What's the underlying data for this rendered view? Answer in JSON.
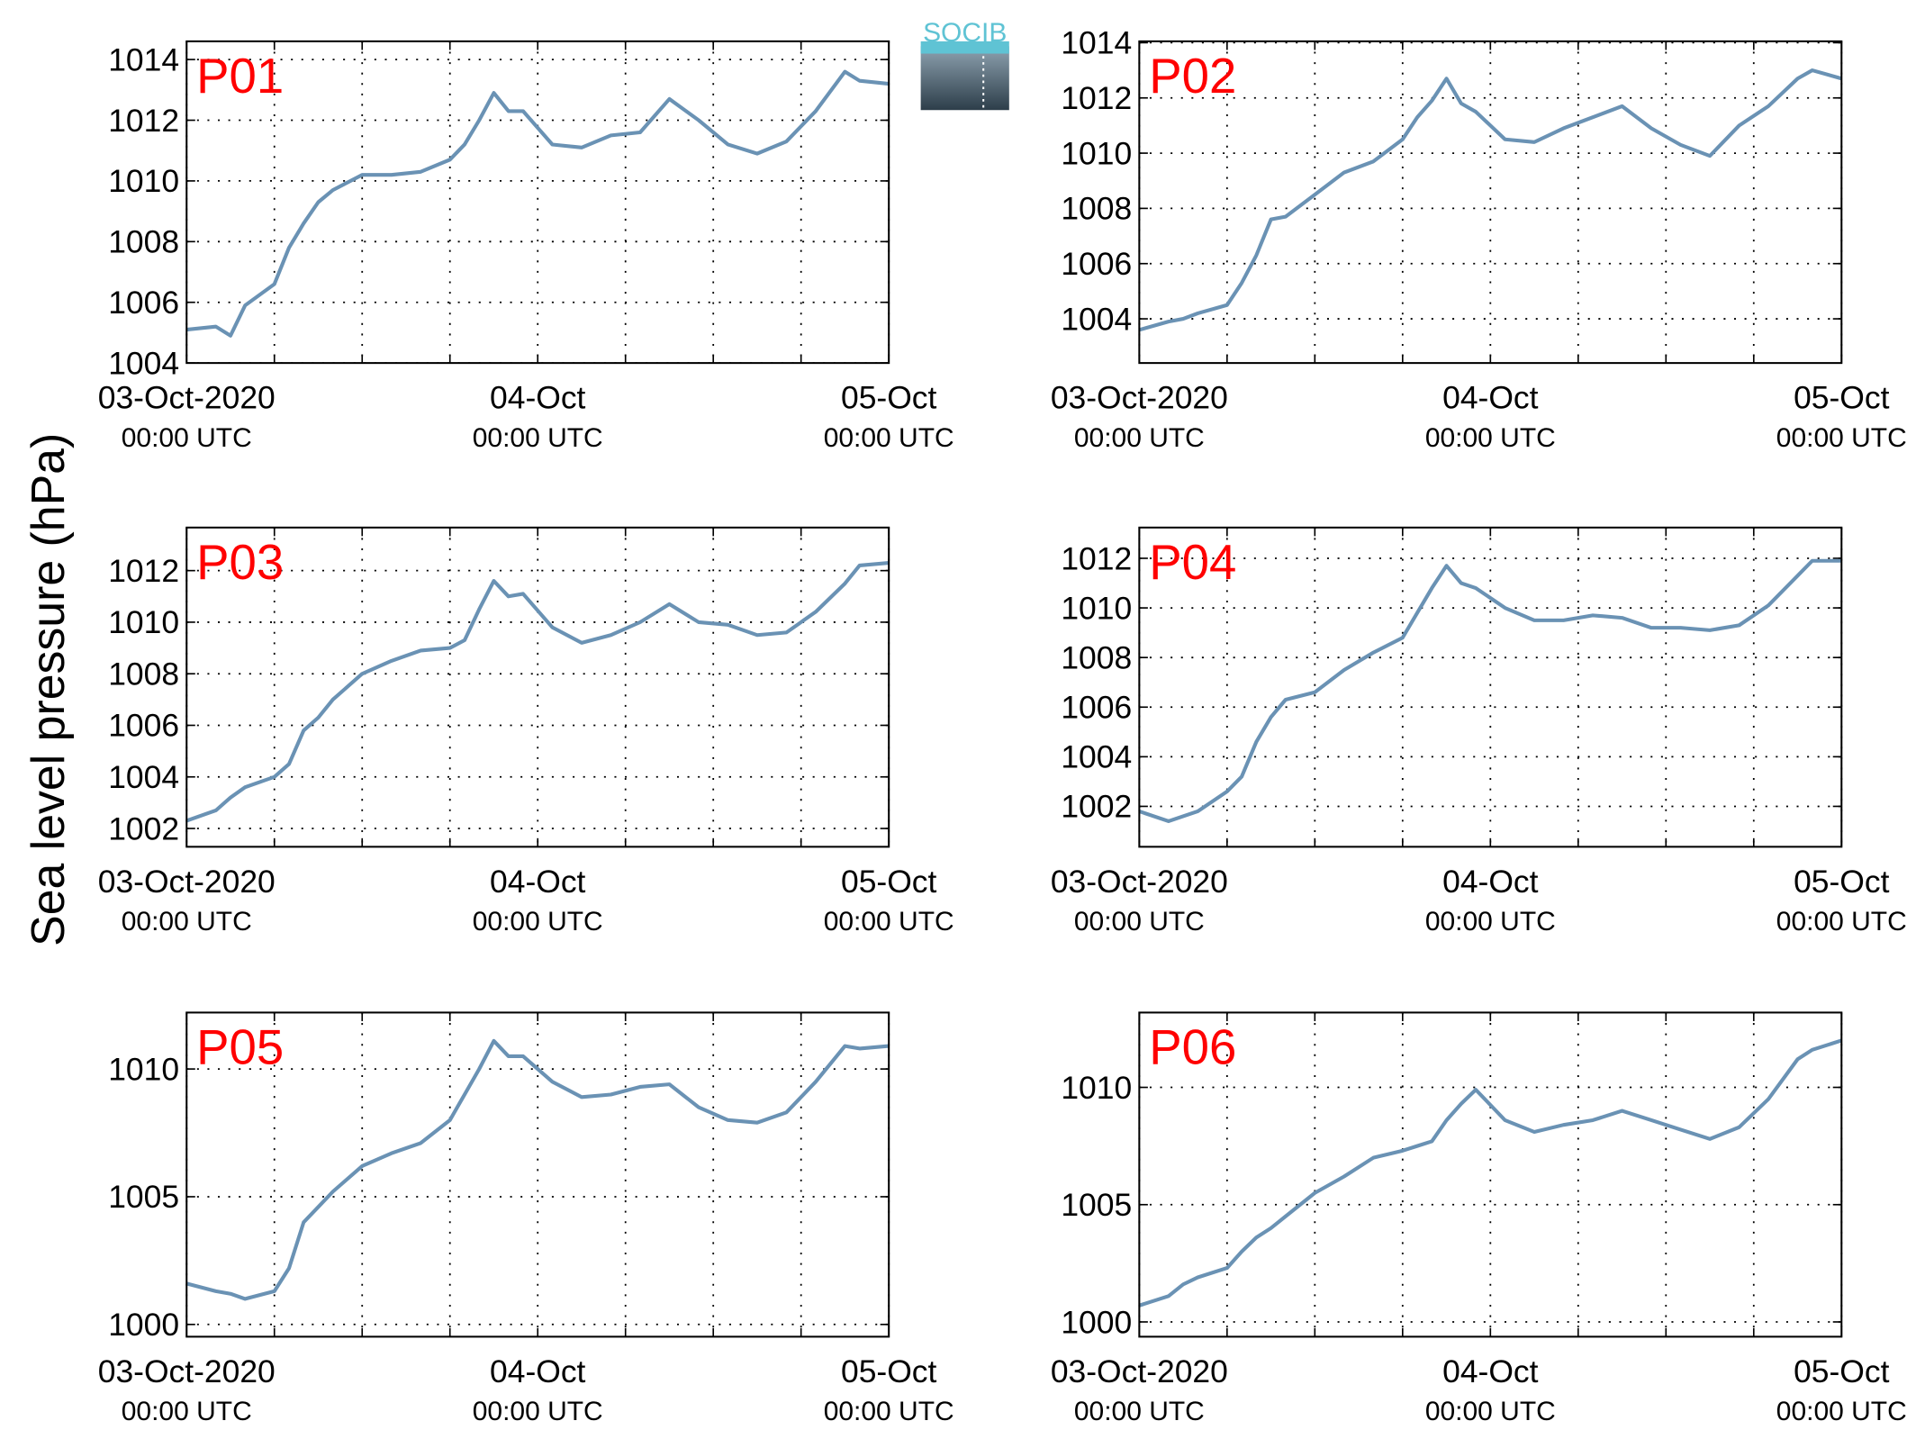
{
  "ylabel": "Sea level pressure (hPa)",
  "logo": "SOCIB",
  "chart_data": [
    {
      "type": "line",
      "title": "P01",
      "title_color": "#ff0000",
      "color": "#6a92b4",
      "grid": true,
      "x": [
        "2020-10-03T00:00",
        "2020-10-03T02:00",
        "2020-10-03T03:00",
        "2020-10-03T04:00",
        "2020-10-03T06:00",
        "2020-10-03T07:00",
        "2020-10-03T08:00",
        "2020-10-03T09:00",
        "2020-10-03T10:00",
        "2020-10-03T12:00",
        "2020-10-03T14:00",
        "2020-10-03T16:00",
        "2020-10-03T18:00",
        "2020-10-03T19:00",
        "2020-10-03T20:00",
        "2020-10-03T21:00",
        "2020-10-03T22:00",
        "2020-10-03T23:00",
        "2020-10-04T01:00",
        "2020-10-04T03:00",
        "2020-10-04T05:00",
        "2020-10-04T07:00",
        "2020-10-04T09:00",
        "2020-10-04T11:00",
        "2020-10-04T13:00",
        "2020-10-04T15:00",
        "2020-10-04T17:00",
        "2020-10-04T19:00",
        "2020-10-04T21:00",
        "2020-10-04T22:00",
        "2020-10-05T00:00"
      ],
      "values": [
        1005.1,
        1005.2,
        1004.9,
        1005.9,
        1006.6,
        1007.8,
        1008.6,
        1009.3,
        1009.7,
        1010.2,
        1010.2,
        1010.3,
        1010.7,
        1011.2,
        1012.0,
        1012.9,
        1012.3,
        1012.3,
        1011.2,
        1011.1,
        1011.5,
        1011.6,
        1012.7,
        1012.0,
        1011.2,
        1010.9,
        1011.3,
        1012.3,
        1013.6,
        1013.3,
        1013.2
      ],
      "xlim": [
        "2020-10-03T00:00",
        "2020-10-05T00:00"
      ],
      "xticks": [
        {
          "value": "2020-10-03T00:00",
          "label": [
            "03-Oct-2020",
            "00:00 UTC"
          ]
        },
        {
          "value": "2020-10-03T06:00",
          "label": null
        },
        {
          "value": "2020-10-03T12:00",
          "label": null
        },
        {
          "value": "2020-10-03T18:00",
          "label": null
        },
        {
          "value": "2020-10-04T00:00",
          "label": [
            "04-Oct",
            "00:00 UTC"
          ]
        },
        {
          "value": "2020-10-04T06:00",
          "label": null
        },
        {
          "value": "2020-10-04T12:00",
          "label": null
        },
        {
          "value": "2020-10-04T18:00",
          "label": null
        },
        {
          "value": "2020-10-05T00:00",
          "label": [
            "05-Oct",
            "00:00 UTC"
          ]
        }
      ],
      "ylim": [
        1004,
        1014.6
      ],
      "yticks": [
        1004,
        1006,
        1008,
        1010,
        1012,
        1014
      ]
    },
    {
      "type": "line",
      "title": "P02",
      "title_color": "#ff0000",
      "color": "#6a92b4",
      "grid": true,
      "x": [
        "2020-10-03T00:00",
        "2020-10-03T02:00",
        "2020-10-03T03:00",
        "2020-10-03T04:00",
        "2020-10-03T06:00",
        "2020-10-03T07:00",
        "2020-10-03T08:00",
        "2020-10-03T09:00",
        "2020-10-03T10:00",
        "2020-10-03T12:00",
        "2020-10-03T14:00",
        "2020-10-03T16:00",
        "2020-10-03T18:00",
        "2020-10-03T19:00",
        "2020-10-03T20:00",
        "2020-10-03T21:00",
        "2020-10-03T22:00",
        "2020-10-03T23:00",
        "2020-10-04T01:00",
        "2020-10-04T03:00",
        "2020-10-04T05:00",
        "2020-10-04T07:00",
        "2020-10-04T09:00",
        "2020-10-04T11:00",
        "2020-10-04T13:00",
        "2020-10-04T15:00",
        "2020-10-04T17:00",
        "2020-10-04T19:00",
        "2020-10-04T21:00",
        "2020-10-04T22:00",
        "2020-10-05T00:00"
      ],
      "values": [
        1003.6,
        1003.9,
        1004.0,
        1004.2,
        1004.5,
        1005.3,
        1006.3,
        1007.6,
        1007.7,
        1008.5,
        1009.3,
        1009.7,
        1010.5,
        1011.3,
        1011.9,
        1012.7,
        1011.8,
        1011.5,
        1010.5,
        1010.4,
        1010.9,
        1011.3,
        1011.7,
        1010.9,
        1010.3,
        1009.9,
        1011.0,
        1011.7,
        1012.7,
        1013.0,
        1012.7
      ],
      "xlim": [
        "2020-10-03T00:00",
        "2020-10-05T00:00"
      ],
      "xticks": [
        {
          "value": "2020-10-03T00:00",
          "label": [
            "03-Oct-2020",
            "00:00 UTC"
          ]
        },
        {
          "value": "2020-10-03T06:00",
          "label": null
        },
        {
          "value": "2020-10-03T12:00",
          "label": null
        },
        {
          "value": "2020-10-03T18:00",
          "label": null
        },
        {
          "value": "2020-10-04T00:00",
          "label": [
            "04-Oct",
            "00:00 UTC"
          ]
        },
        {
          "value": "2020-10-04T06:00",
          "label": null
        },
        {
          "value": "2020-10-04T12:00",
          "label": null
        },
        {
          "value": "2020-10-04T18:00",
          "label": null
        },
        {
          "value": "2020-10-05T00:00",
          "label": [
            "05-Oct",
            "00:00 UTC"
          ]
        }
      ],
      "ylim": [
        1002.4,
        1014.05
      ],
      "yticks": [
        1004,
        1006,
        1008,
        1010,
        1012,
        1014
      ]
    },
    {
      "type": "line",
      "title": "P03",
      "title_color": "#ff0000",
      "color": "#6a92b4",
      "grid": true,
      "x": [
        "2020-10-03T00:00",
        "2020-10-03T02:00",
        "2020-10-03T03:00",
        "2020-10-03T04:00",
        "2020-10-03T06:00",
        "2020-10-03T07:00",
        "2020-10-03T08:00",
        "2020-10-03T09:00",
        "2020-10-03T10:00",
        "2020-10-03T12:00",
        "2020-10-03T14:00",
        "2020-10-03T16:00",
        "2020-10-03T18:00",
        "2020-10-03T19:00",
        "2020-10-03T20:00",
        "2020-10-03T21:00",
        "2020-10-03T22:00",
        "2020-10-03T23:00",
        "2020-10-04T01:00",
        "2020-10-04T03:00",
        "2020-10-04T05:00",
        "2020-10-04T07:00",
        "2020-10-04T09:00",
        "2020-10-04T11:00",
        "2020-10-04T13:00",
        "2020-10-04T15:00",
        "2020-10-04T17:00",
        "2020-10-04T19:00",
        "2020-10-04T21:00",
        "2020-10-04T22:00",
        "2020-10-05T00:00"
      ],
      "values": [
        1002.3,
        1002.7,
        1003.2,
        1003.6,
        1004.0,
        1004.5,
        1005.8,
        1006.3,
        1007.0,
        1008.0,
        1008.5,
        1008.9,
        1009.0,
        1009.3,
        1010.5,
        1011.6,
        1011.0,
        1011.1,
        1009.8,
        1009.2,
        1009.5,
        1010.0,
        1010.7,
        1010.0,
        1009.9,
        1009.5,
        1009.6,
        1010.4,
        1011.5,
        1012.2,
        1012.3
      ],
      "xlim": [
        "2020-10-03T00:00",
        "2020-10-05T00:00"
      ],
      "xticks": [
        {
          "value": "2020-10-03T00:00",
          "label": [
            "03-Oct-2020",
            "00:00 UTC"
          ]
        },
        {
          "value": "2020-10-03T06:00",
          "label": null
        },
        {
          "value": "2020-10-03T12:00",
          "label": null
        },
        {
          "value": "2020-10-03T18:00",
          "label": null
        },
        {
          "value": "2020-10-04T00:00",
          "label": [
            "04-Oct",
            "00:00 UTC"
          ]
        },
        {
          "value": "2020-10-04T06:00",
          "label": null
        },
        {
          "value": "2020-10-04T12:00",
          "label": null
        },
        {
          "value": "2020-10-04T18:00",
          "label": null
        },
        {
          "value": "2020-10-05T00:00",
          "label": [
            "05-Oct",
            "00:00 UTC"
          ]
        }
      ],
      "ylim": [
        1001.29,
        1013.67
      ],
      "yticks": [
        1002,
        1004,
        1006,
        1008,
        1010,
        1012
      ]
    },
    {
      "type": "line",
      "title": "P04",
      "title_color": "#ff0000",
      "color": "#6a92b4",
      "grid": true,
      "x": [
        "2020-10-03T00:00",
        "2020-10-03T02:00",
        "2020-10-03T03:00",
        "2020-10-03T04:00",
        "2020-10-03T06:00",
        "2020-10-03T07:00",
        "2020-10-03T08:00",
        "2020-10-03T09:00",
        "2020-10-03T10:00",
        "2020-10-03T12:00",
        "2020-10-03T14:00",
        "2020-10-03T16:00",
        "2020-10-03T18:00",
        "2020-10-03T19:00",
        "2020-10-03T20:00",
        "2020-10-03T21:00",
        "2020-10-03T22:00",
        "2020-10-03T23:00",
        "2020-10-04T01:00",
        "2020-10-04T03:00",
        "2020-10-04T05:00",
        "2020-10-04T07:00",
        "2020-10-04T09:00",
        "2020-10-04T11:00",
        "2020-10-04T13:00",
        "2020-10-04T15:00",
        "2020-10-04T17:00",
        "2020-10-04T19:00",
        "2020-10-04T21:00",
        "2020-10-04T22:00",
        "2020-10-05T00:00"
      ],
      "values": [
        1001.8,
        1001.4,
        1001.6,
        1001.8,
        1002.6,
        1003.2,
        1004.6,
        1005.6,
        1006.3,
        1006.6,
        1007.5,
        1008.2,
        1008.8,
        1009.8,
        1010.8,
        1011.7,
        1011.0,
        1010.8,
        1010.0,
        1009.5,
        1009.5,
        1009.7,
        1009.6,
        1009.2,
        1009.2,
        1009.1,
        1009.3,
        1010.1,
        1011.3,
        1011.9,
        1011.9
      ],
      "xlim": [
        "2020-10-03T00:00",
        "2020-10-05T00:00"
      ],
      "xticks": [
        {
          "value": "2020-10-03T00:00",
          "label": [
            "03-Oct-2020",
            "00:00 UTC"
          ]
        },
        {
          "value": "2020-10-03T06:00",
          "label": null
        },
        {
          "value": "2020-10-03T12:00",
          "label": null
        },
        {
          "value": "2020-10-03T18:00",
          "label": null
        },
        {
          "value": "2020-10-04T00:00",
          "label": [
            "04-Oct",
            "00:00 UTC"
          ]
        },
        {
          "value": "2020-10-04T06:00",
          "label": null
        },
        {
          "value": "2020-10-04T12:00",
          "label": null
        },
        {
          "value": "2020-10-04T18:00",
          "label": null
        },
        {
          "value": "2020-10-05T00:00",
          "label": [
            "05-Oct",
            "00:00 UTC"
          ]
        }
      ],
      "ylim": [
        1000.37,
        1013.24
      ],
      "yticks": [
        1002,
        1004,
        1006,
        1008,
        1010,
        1012
      ]
    },
    {
      "type": "line",
      "title": "P05",
      "title_color": "#ff0000",
      "color": "#6a92b4",
      "grid": true,
      "x": [
        "2020-10-03T00:00",
        "2020-10-03T02:00",
        "2020-10-03T03:00",
        "2020-10-03T04:00",
        "2020-10-03T06:00",
        "2020-10-03T07:00",
        "2020-10-03T08:00",
        "2020-10-03T09:00",
        "2020-10-03T10:00",
        "2020-10-03T12:00",
        "2020-10-03T14:00",
        "2020-10-03T16:00",
        "2020-10-03T18:00",
        "2020-10-03T19:00",
        "2020-10-03T20:00",
        "2020-10-03T21:00",
        "2020-10-03T22:00",
        "2020-10-03T23:00",
        "2020-10-04T01:00",
        "2020-10-04T03:00",
        "2020-10-04T05:00",
        "2020-10-04T07:00",
        "2020-10-04T09:00",
        "2020-10-04T11:00",
        "2020-10-04T13:00",
        "2020-10-04T15:00",
        "2020-10-04T17:00",
        "2020-10-04T19:00",
        "2020-10-04T21:00",
        "2020-10-04T22:00",
        "2020-10-05T00:00"
      ],
      "values": [
        1001.6,
        1001.3,
        1001.2,
        1001.0,
        1001.3,
        1002.2,
        1004.0,
        1004.6,
        1005.2,
        1006.2,
        1006.7,
        1007.1,
        1008.0,
        1009.0,
        1010.0,
        1011.1,
        1010.5,
        1010.5,
        1009.5,
        1008.9,
        1009.0,
        1009.3,
        1009.4,
        1008.5,
        1008.0,
        1007.9,
        1008.3,
        1009.5,
        1010.9,
        1010.8,
        1010.9
      ],
      "xlim": [
        "2020-10-03T00:00",
        "2020-10-05T00:00"
      ],
      "xticks": [
        {
          "value": "2020-10-03T00:00",
          "label": [
            "03-Oct-2020",
            "00:00 UTC"
          ]
        },
        {
          "value": "2020-10-03T06:00",
          "label": null
        },
        {
          "value": "2020-10-03T12:00",
          "label": null
        },
        {
          "value": "2020-10-03T18:00",
          "label": null
        },
        {
          "value": "2020-10-04T00:00",
          "label": [
            "04-Oct",
            "00:00 UTC"
          ]
        },
        {
          "value": "2020-10-04T06:00",
          "label": null
        },
        {
          "value": "2020-10-04T12:00",
          "label": null
        },
        {
          "value": "2020-10-04T18:00",
          "label": null
        },
        {
          "value": "2020-10-05T00:00",
          "label": [
            "05-Oct",
            "00:00 UTC"
          ]
        }
      ],
      "ylim": [
        999.52,
        1012.21
      ],
      "yticks": [
        1000,
        1005,
        1010
      ]
    },
    {
      "type": "line",
      "title": "P06",
      "title_color": "#ff0000",
      "color": "#6a92b4",
      "grid": true,
      "x": [
        "2020-10-03T00:00",
        "2020-10-03T02:00",
        "2020-10-03T03:00",
        "2020-10-03T04:00",
        "2020-10-03T06:00",
        "2020-10-03T07:00",
        "2020-10-03T08:00",
        "2020-10-03T09:00",
        "2020-10-03T10:00",
        "2020-10-03T12:00",
        "2020-10-03T14:00",
        "2020-10-03T16:00",
        "2020-10-03T18:00",
        "2020-10-03T19:00",
        "2020-10-03T20:00",
        "2020-10-03T21:00",
        "2020-10-03T22:00",
        "2020-10-03T23:00",
        "2020-10-04T01:00",
        "2020-10-04T03:00",
        "2020-10-04T05:00",
        "2020-10-04T07:00",
        "2020-10-04T09:00",
        "2020-10-04T11:00",
        "2020-10-04T13:00",
        "2020-10-04T15:00",
        "2020-10-04T17:00",
        "2020-10-04T19:00",
        "2020-10-04T21:00",
        "2020-10-04T22:00",
        "2020-10-05T00:00"
      ],
      "values": [
        1000.7,
        1001.1,
        1001.6,
        1001.9,
        1002.3,
        1003.0,
        1003.6,
        1004.0,
        1004.5,
        1005.5,
        1006.2,
        1007.0,
        1007.3,
        1007.5,
        1007.7,
        1008.6,
        1009.3,
        1009.9,
        1008.6,
        1008.1,
        1008.4,
        1008.6,
        1009.0,
        1008.6,
        1008.2,
        1007.8,
        1008.3,
        1009.5,
        1011.2,
        1011.6,
        1012.0
      ],
      "xlim": [
        "2020-10-03T00:00",
        "2020-10-05T00:00"
      ],
      "xticks": [
        {
          "value": "2020-10-03T00:00",
          "label": [
            "03-Oct-2020",
            "00:00 UTC"
          ]
        },
        {
          "value": "2020-10-03T06:00",
          "label": null
        },
        {
          "value": "2020-10-03T12:00",
          "label": null
        },
        {
          "value": "2020-10-03T18:00",
          "label": null
        },
        {
          "value": "2020-10-04T00:00",
          "label": [
            "04-Oct",
            "00:00 UTC"
          ]
        },
        {
          "value": "2020-10-04T06:00",
          "label": null
        },
        {
          "value": "2020-10-04T12:00",
          "label": null
        },
        {
          "value": "2020-10-04T18:00",
          "label": null
        },
        {
          "value": "2020-10-05T00:00",
          "label": [
            "05-Oct",
            "00:00 UTC"
          ]
        }
      ],
      "ylim": [
        999.37,
        1013.19
      ],
      "yticks": [
        1000,
        1005,
        1010
      ]
    }
  ]
}
